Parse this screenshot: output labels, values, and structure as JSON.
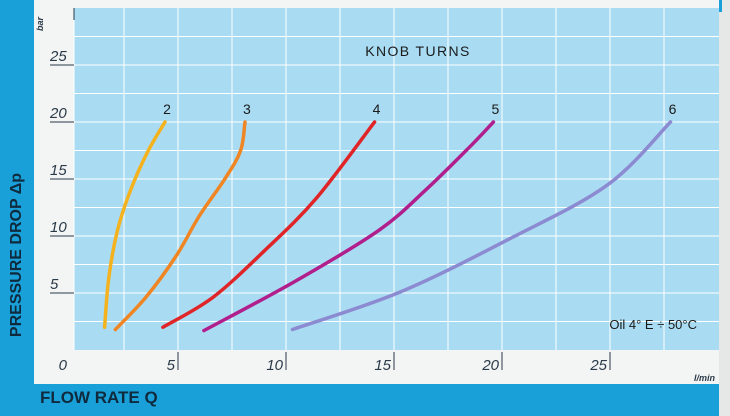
{
  "chart_data": {
    "type": "line",
    "title": "KNOB TURNS",
    "xlabel": "FLOW RATE Q",
    "ylabel": "PRESSURE DROP Δp",
    "x_unit": "l/min",
    "y_unit": "bar",
    "xlim": [
      0,
      30
    ],
    "ylim": [
      0,
      30
    ],
    "x_ticks": [
      "0",
      "5",
      "10",
      "15",
      "20",
      "25"
    ],
    "y_ticks": [
      "5",
      "10",
      "15",
      "20",
      "25"
    ],
    "grid": true,
    "annotation": "Oil 4° E ÷ 50°C",
    "series": [
      {
        "name": "2",
        "color": "#f5b21f",
        "points": [
          [
            1.6,
            2
          ],
          [
            1.8,
            6.4
          ],
          [
            2.2,
            10.5
          ],
          [
            2.8,
            14
          ],
          [
            3.6,
            17.4
          ],
          [
            4.4,
            20
          ]
        ]
      },
      {
        "name": "3",
        "color": "#ef8523",
        "points": [
          [
            2.1,
            1.8
          ],
          [
            3.5,
            4.6
          ],
          [
            4.9,
            8.2
          ],
          [
            6.0,
            11.8
          ],
          [
            7.2,
            15.1
          ],
          [
            7.9,
            17.5
          ],
          [
            8.1,
            20
          ]
        ]
      },
      {
        "name": "4",
        "color": "#e02529",
        "points": [
          [
            4.3,
            2
          ],
          [
            6.6,
            4.6
          ],
          [
            9.0,
            8.7
          ],
          [
            11.4,
            13.3
          ],
          [
            14.1,
            20
          ]
        ]
      },
      {
        "name": "5",
        "color": "#b01f8c",
        "points": [
          [
            6.2,
            1.7
          ],
          [
            10.4,
            6
          ],
          [
            14.3,
            10.5
          ],
          [
            16.5,
            14.1
          ],
          [
            18.6,
            18
          ],
          [
            19.6,
            20
          ]
        ]
      },
      {
        "name": "6",
        "color": "#8c8ad0",
        "points": [
          [
            10.3,
            1.8
          ],
          [
            15.3,
            5.1
          ],
          [
            20.4,
            9.8
          ],
          [
            24.9,
            14.5
          ],
          [
            27.8,
            20
          ]
        ]
      }
    ]
  }
}
